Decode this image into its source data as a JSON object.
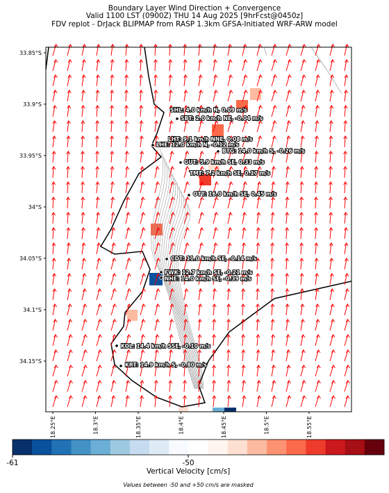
{
  "header": {
    "lines": [
      "Boundary Layer Wind Direction + Convergence",
      "Valid 1100 LST (0900Z) THU 14 Aug 2025 [9hrFcst@0450z]",
      "FDV replot - DrJack BLIPMAP from RASP 1.3km GFSA-Initiated WRF-ARW model"
    ]
  },
  "map": {
    "lat_labels": [
      "33.85°S",
      "33.9°S",
      "33.95°S",
      "34°S",
      "34.05°S",
      "34.1°S",
      "34.15°S"
    ],
    "lon_labels": [
      "18.25°E",
      "18.3°E",
      "18.35°E",
      "18.4°E",
      "18.45°E",
      "18.5°E",
      "18.55°E"
    ],
    "stations": [
      "SHL: 4.0 km/h N, 0.09 m/s",
      "SBT: 2.0 km/h NE, -0.04 m/s",
      "LHT: 9.1 km/h NNE, 0.08 m/s",
      "LHE: 12.0 km/h N, -0.12 m/s",
      "BTG: 14.0 km/h S, -0.26 m/s",
      "GUT: 5.9 km/h SE, 0.33 m/s",
      "TMT: 7.2 km/h SE, 0.17 m/s",
      "OTT: 16.0 km/h SE, 0.45 m/s",
      "CDT: 11.0 km/h SE, -0.14 m/s",
      "FWK: 12.7 km/h SE, -0.21 m/s",
      "NHE: 14.0 km/h SE, -0.39 m/s",
      "KOL: 14.4 km/h SSE, -0.10 m/s",
      "KRT: 14.9 km/h S, -0.80 m/s"
    ]
  },
  "colorbar": {
    "tick_labels": [
      -61,
      -50
    ],
    "label": "Vertical Velocity [cm/s]",
    "colors": [
      "#08306b",
      "#08519c",
      "#2171b5",
      "#4292c6",
      "#6baed6",
      "#9ecae1",
      "#c6dbef",
      "#deebf7",
      "#f7fbff",
      "#ffffff",
      "#fff5f0",
      "#fee0d2",
      "#fcbba1",
      "#fc9272",
      "#fb6a4a",
      "#ef3b2c",
      "#cb181d",
      "#a50f15",
      "#67000d"
    ]
  },
  "footnote": "Values between -50 and +50 cm/s are masked"
}
